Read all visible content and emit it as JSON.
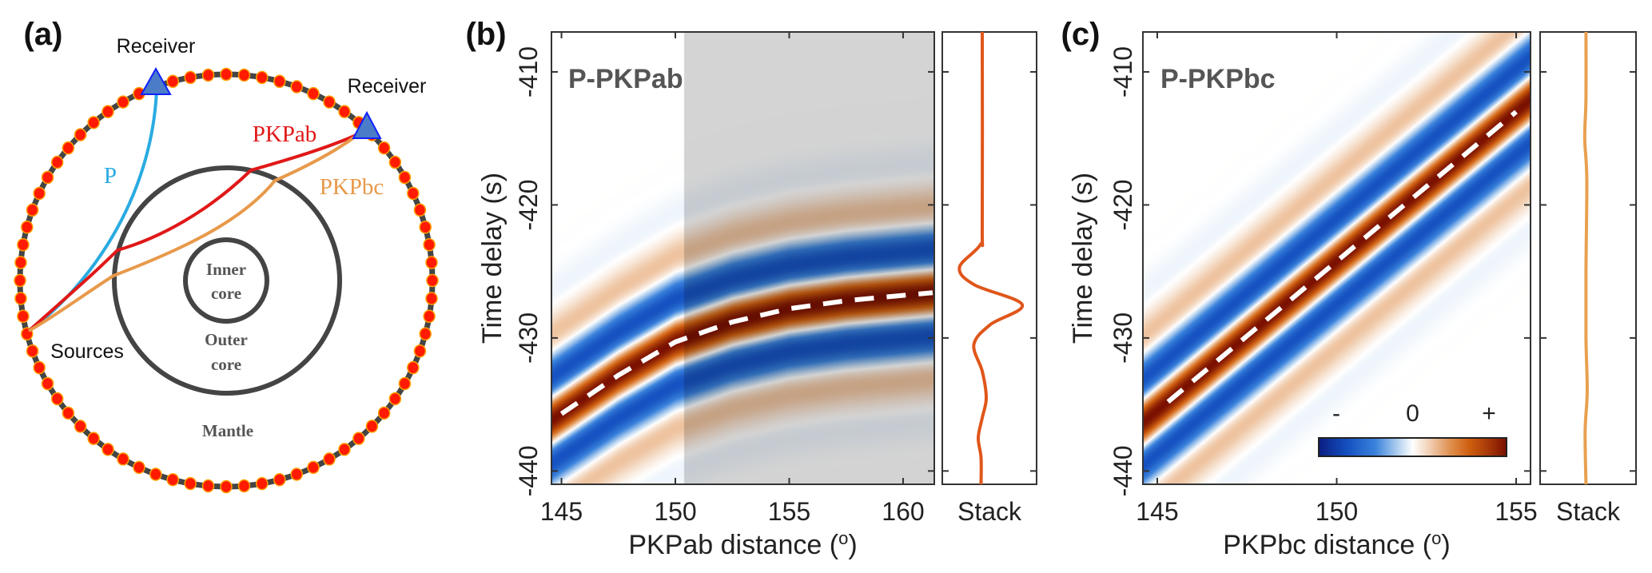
{
  "panel_a": {
    "label": "(a)",
    "receiver_left": "Receiver",
    "receiver_right": "Receiver",
    "phase_p": "P",
    "phase_pkpab": "PKPab",
    "phase_pkpbc": "PKPbc",
    "sources": "Sources",
    "inner_core_1": "Inner",
    "inner_core_2": "core",
    "outer_core_1": "Outer",
    "outer_core_2": "core",
    "mantle": "Mantle",
    "colors": {
      "P": "#29abe2",
      "PKPab": "#e01818",
      "PKPbc": "#e8994a",
      "stations": "#ff1a00",
      "receivers": "#4a7cc8"
    }
  },
  "chart_data": [
    {
      "type": "heatmap",
      "panel_label": "(b)",
      "annotation": "P-PKPab",
      "xlabel": "PKPab distance",
      "xlabel_unit": "o",
      "ylabel": "Time delay (s)",
      "xlim": [
        144.56,
        161.37
      ],
      "ylim": [
        -441,
        -407
      ],
      "xticks": [
        "145",
        "150",
        "155",
        "160"
      ],
      "yticks": [
        "-410",
        "-420",
        "-430",
        "-440"
      ],
      "grid": false,
      "shaded_region": {
        "x": [
          150.4,
          161.37
        ],
        "color": "#d4d4d4"
      },
      "dashed_line": [
        [
          145,
          -435.7
        ],
        [
          147.5,
          -432.8
        ],
        [
          150,
          -430.3
        ],
        [
          152.5,
          -428.8
        ],
        [
          155,
          -427.8
        ],
        [
          157.5,
          -427.2
        ],
        [
          160,
          -426.8
        ],
        [
          161.3,
          -426.6
        ]
      ],
      "stack": {
        "label": "Stack",
        "color": "#e0561a",
        "xlim": [
          -1,
          1.36
        ],
        "points": [
          [
            -407,
            0
          ],
          [
            -421.5,
            0
          ],
          [
            -423,
            -0.05
          ],
          [
            -424.7,
            -0.57
          ],
          [
            -426,
            -0.2
          ],
          [
            -427.5,
            1
          ],
          [
            -429,
            0.2
          ],
          [
            -430.5,
            -0.21
          ],
          [
            -432.5,
            0
          ],
          [
            -434.5,
            0.1
          ],
          [
            -436,
            0
          ],
          [
            -437.5,
            -0.1
          ],
          [
            -439,
            -0.03
          ],
          [
            -441,
            -0.03
          ]
        ]
      }
    },
    {
      "type": "heatmap",
      "panel_label": "(c)",
      "annotation": "P-PKPbc",
      "xlabel": "PKPbc distance",
      "xlabel_unit": "o",
      "ylabel": "Time delay (s)",
      "xlim": [
        144.6,
        155.4
      ],
      "ylim": [
        -441,
        -407
      ],
      "xticks": [
        "145",
        "150",
        "155"
      ],
      "yticks": [
        "-410",
        "-420",
        "-430",
        "-440"
      ],
      "grid": false,
      "dashed_line": [
        [
          145.3,
          -434.8
        ],
        [
          155,
          -413
        ]
      ],
      "colorbar": {
        "labels": [
          "-",
          "0",
          "+"
        ]
      },
      "stack": {
        "label": "Stack",
        "color": "#e8a050",
        "xlim": [
          -1.1,
          1.2
        ],
        "points": [
          [
            -407,
            0
          ],
          [
            -412,
            0
          ],
          [
            -415,
            -0.03
          ],
          [
            -418,
            0.02
          ],
          [
            -425,
            0
          ],
          [
            -430,
            0
          ],
          [
            -434,
            0.03
          ],
          [
            -437,
            -0.02
          ],
          [
            -441,
            0
          ]
        ]
      }
    }
  ]
}
